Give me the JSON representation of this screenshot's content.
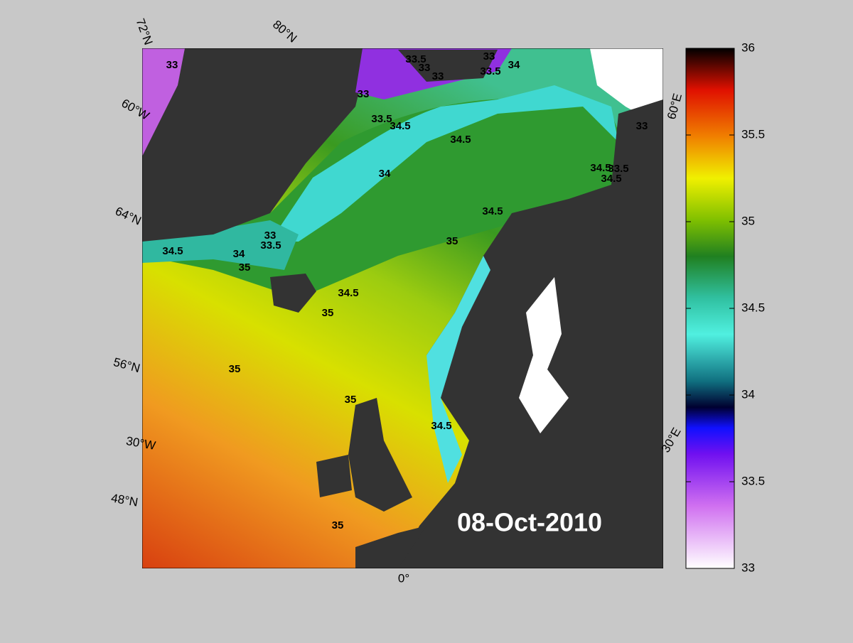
{
  "map": {
    "date": "08-Oct-2010",
    "graticule_labels": [
      "72°N",
      "80°N",
      "60°W",
      "60°E",
      "64°N",
      "56°N",
      "30°W",
      "30°E",
      "48°N",
      "0°"
    ],
    "contour_labels": [
      "33",
      "33.5",
      "33",
      "33",
      "33.5",
      "34",
      "33",
      "33",
      "33.5",
      "34.5",
      "34.5",
      "33",
      "34.5",
      "34.5",
      "33.5",
      "34",
      "34.5",
      "33",
      "35",
      "33.5",
      "34.5",
      "34",
      "35",
      "34.5",
      "35",
      "35",
      "35",
      "34.5",
      "35"
    ]
  },
  "colorbar": {
    "lim": [
      33,
      36
    ],
    "ticks": [
      33,
      33.5,
      34,
      34.5,
      35,
      35.5,
      36
    ]
  }
}
